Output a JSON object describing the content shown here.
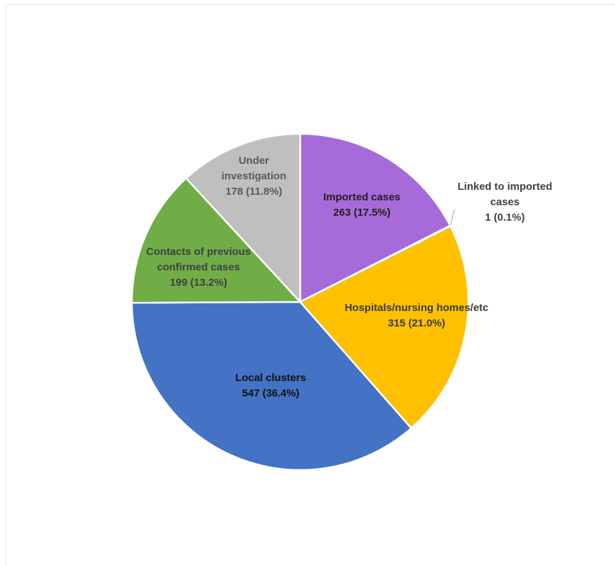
{
  "chart_data": {
    "type": "pie",
    "title": "",
    "slices": [
      {
        "label_lines": [
          "Imported cases"
        ],
        "value": 263,
        "value_text": "263 (17.5%)",
        "percent": 17.5,
        "color": "#a66bd8",
        "label_color": "#1f1f1f"
      },
      {
        "label_lines": [
          "Linked to imported",
          "cases"
        ],
        "value": 1,
        "value_text": "1 (0.1%)",
        "percent": 0.1,
        "color": "#5b9bd5",
        "label_color": "#404040"
      },
      {
        "label_lines": [
          "Hospitals/nursing homes/etc"
        ],
        "value": 315,
        "value_text": "315 (21.0%)",
        "percent": 21.0,
        "color": "#ffc000",
        "label_color": "#3a3a3a"
      },
      {
        "label_lines": [
          "Local clusters"
        ],
        "value": 547,
        "value_text": "547 (36.4%)",
        "percent": 36.4,
        "color": "#4472c4",
        "label_color": "#111111"
      },
      {
        "label_lines": [
          "Contacts of previous",
          "confirmed cases"
        ],
        "value": 199,
        "value_text": "199 (13.2%)",
        "percent": 13.2,
        "color": "#70ad47",
        "label_color": "#404040"
      },
      {
        "label_lines": [
          "Under",
          "investigation"
        ],
        "value": 178,
        "value_text": "178 (11.8%)",
        "percent": 11.8,
        "color": "#bfbfbf",
        "label_color": "#595959"
      }
    ]
  }
}
